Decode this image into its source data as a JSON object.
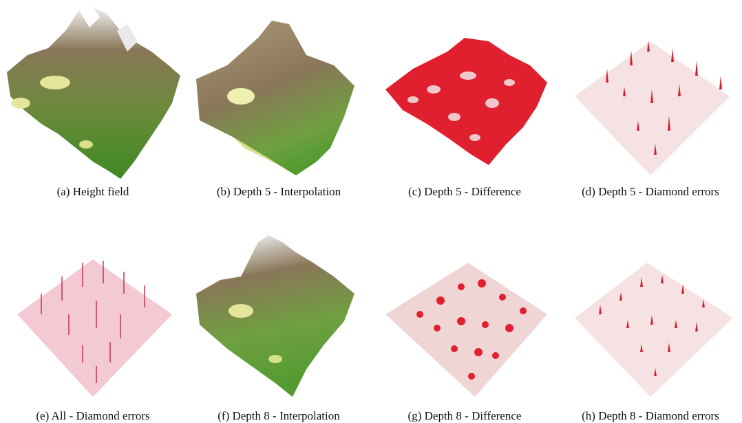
{
  "captions": {
    "a": "(a) Height field",
    "b": "(b) Depth 5 - Interpolation",
    "c": "(c) Depth 5 - Difference",
    "d": "(d) Depth 5 - Diamond errors",
    "e": "(e) All - Diamond errors",
    "f": "(f) Depth 8 - Interpolation",
    "g": "(g) Depth 8 - Difference",
    "h": "(h) Depth 8 - Diamond errors"
  },
  "colors": {
    "terrain_green": "#4f9a2e",
    "terrain_brown": "#8a7659",
    "terrain_snow": "#f2f2f2",
    "terrain_sand": "#e6e69a",
    "error_red": "#e0202e",
    "error_plane": "#f6e2e2"
  }
}
